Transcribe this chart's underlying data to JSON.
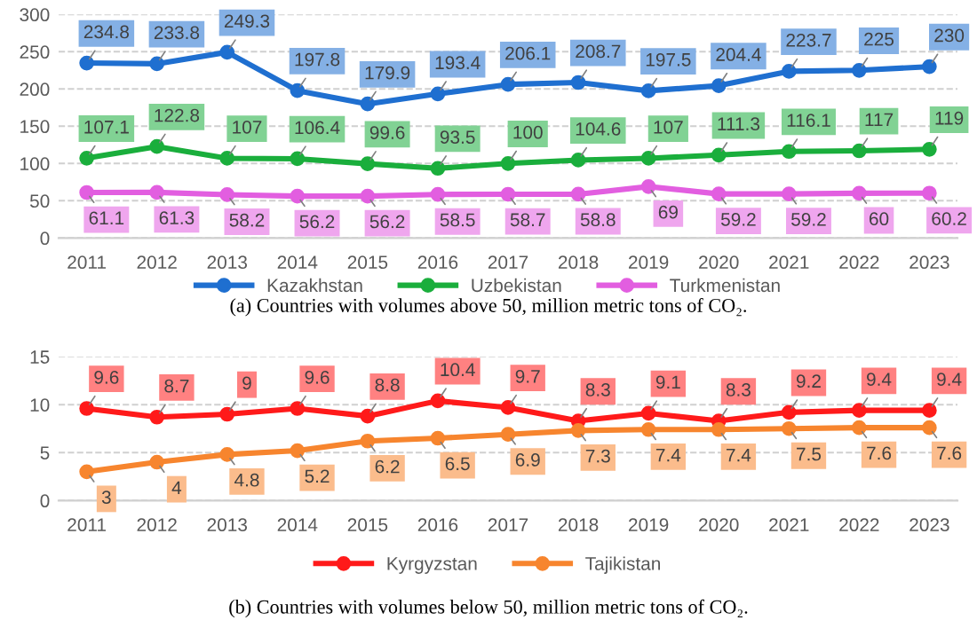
{
  "chart_data": [
    {
      "type": "line",
      "categories": [
        "2011",
        "2012",
        "2013",
        "2014",
        "2015",
        "2016",
        "2017",
        "2018",
        "2019",
        "2020",
        "2021",
        "2022",
        "2023"
      ],
      "ylim": [
        0,
        300
      ],
      "yticks": [
        0,
        50,
        100,
        150,
        200,
        250,
        300
      ],
      "grid": "y",
      "legend": "bottom",
      "marker": "circle",
      "line_style": "solid",
      "data_labels": true,
      "annotations": [
        "(a) Countries with volumes above 50, million metric tons of CO₂."
      ],
      "series": [
        {
          "name": "Kazakhstan",
          "color": "#1f6fd0",
          "values": [
            234.8,
            233.8,
            249.3,
            197.8,
            179.9,
            193.4,
            206.1,
            208.7,
            197.5,
            204.4,
            223.7,
            225,
            230
          ]
        },
        {
          "name": "Uzbekistan",
          "color": "#1aae3c",
          "values": [
            107.1,
            122.8,
            107,
            106.4,
            99.6,
            93.5,
            100,
            104.6,
            107,
            111.3,
            116.1,
            117,
            119
          ]
        },
        {
          "name": "Turkmenistan",
          "color": "#e25ee0",
          "values": [
            61.1,
            61.3,
            58.2,
            56.2,
            56.2,
            58.5,
            58.7,
            58.8,
            69,
            59.2,
            59.2,
            60,
            60.2
          ]
        }
      ]
    },
    {
      "type": "line",
      "categories": [
        "2011",
        "2012",
        "2013",
        "2014",
        "2015",
        "2016",
        "2017",
        "2018",
        "2019",
        "2020",
        "2021",
        "2022",
        "2023"
      ],
      "ylim": [
        0,
        15
      ],
      "yticks": [
        0,
        5,
        10,
        15
      ],
      "grid": "y",
      "legend": "bottom",
      "marker": "circle",
      "line_style": "solid",
      "data_labels": true,
      "annotations": [
        "(b) Countries with volumes below 50, million metric tons of CO₂."
      ],
      "series": [
        {
          "name": "Kyrgyzstan",
          "color": "#ff1a1a",
          "values": [
            9.6,
            8.7,
            9,
            9.6,
            8.8,
            10.4,
            9.7,
            8.3,
            9.1,
            8.3,
            9.2,
            9.4,
            9.4
          ]
        },
        {
          "name": "Tajikistan",
          "color": "#f7852e",
          "values": [
            3,
            4,
            4.8,
            5.2,
            6.2,
            6.5,
            6.9,
            7.3,
            7.4,
            7.4,
            7.5,
            7.6,
            7.6
          ]
        }
      ]
    }
  ]
}
